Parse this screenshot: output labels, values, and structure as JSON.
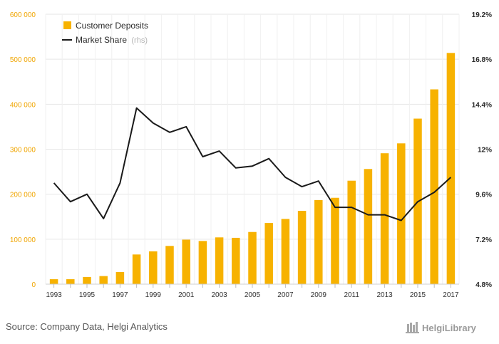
{
  "chart_data": {
    "type": "bar",
    "categories": [
      "1993",
      "1994",
      "1995",
      "1996",
      "1997",
      "1998",
      "1999",
      "2000",
      "2001",
      "2002",
      "2003",
      "2004",
      "2005",
      "2006",
      "2007",
      "2008",
      "2009",
      "2010",
      "2011",
      "2012",
      "2013",
      "2014",
      "2015",
      "2016",
      "2017"
    ],
    "x_tick_labels": [
      "1993",
      "1995",
      "1997",
      "1999",
      "2001",
      "2003",
      "2005",
      "2007",
      "2009",
      "2011",
      "2013",
      "2015",
      "2017"
    ],
    "series": [
      {
        "name": "Customer Deposits",
        "type": "bar",
        "axis": "left",
        "color": "#f7b200",
        "values": [
          11000,
          11000,
          16000,
          18000,
          27000,
          66000,
          73000,
          85000,
          99000,
          96000,
          104000,
          103000,
          116000,
          136000,
          145000,
          163000,
          187000,
          192000,
          230000,
          256000,
          291000,
          313000,
          368000,
          433000,
          514000
        ]
      },
      {
        "name": "Market Share",
        "name_suffix": "(rhs)",
        "type": "line",
        "axis": "right",
        "color": "#1a1a1a",
        "values": [
          10.2,
          9.2,
          9.6,
          8.3,
          10.2,
          14.2,
          13.4,
          12.9,
          13.2,
          11.6,
          11.9,
          11.0,
          11.1,
          11.5,
          10.5,
          10.0,
          10.3,
          8.9,
          8.9,
          8.5,
          8.5,
          8.2,
          9.2,
          9.7,
          10.5
        ]
      }
    ],
    "ylim_left": [
      0,
      600000
    ],
    "ylim_right": [
      4.8,
      19.2
    ],
    "y_left_ticks": [
      "0",
      "100 000",
      "200 000",
      "300 000",
      "400 000",
      "500 000",
      "600 000"
    ],
    "y_right_ticks": [
      "4.8%",
      "7.2%",
      "9.6%",
      "12%",
      "14.4%",
      "16.8%",
      "19.2%"
    ],
    "grid": true,
    "legend": "top-left",
    "colors": {
      "bar": "#f7b200",
      "line": "#1a1a1a",
      "left_axis_text": "#f0a500",
      "grid": "#e6e6e6"
    }
  },
  "footer": {
    "source": "Source: Company Data, Helgi Analytics",
    "brand": "HelgiLibrary"
  }
}
